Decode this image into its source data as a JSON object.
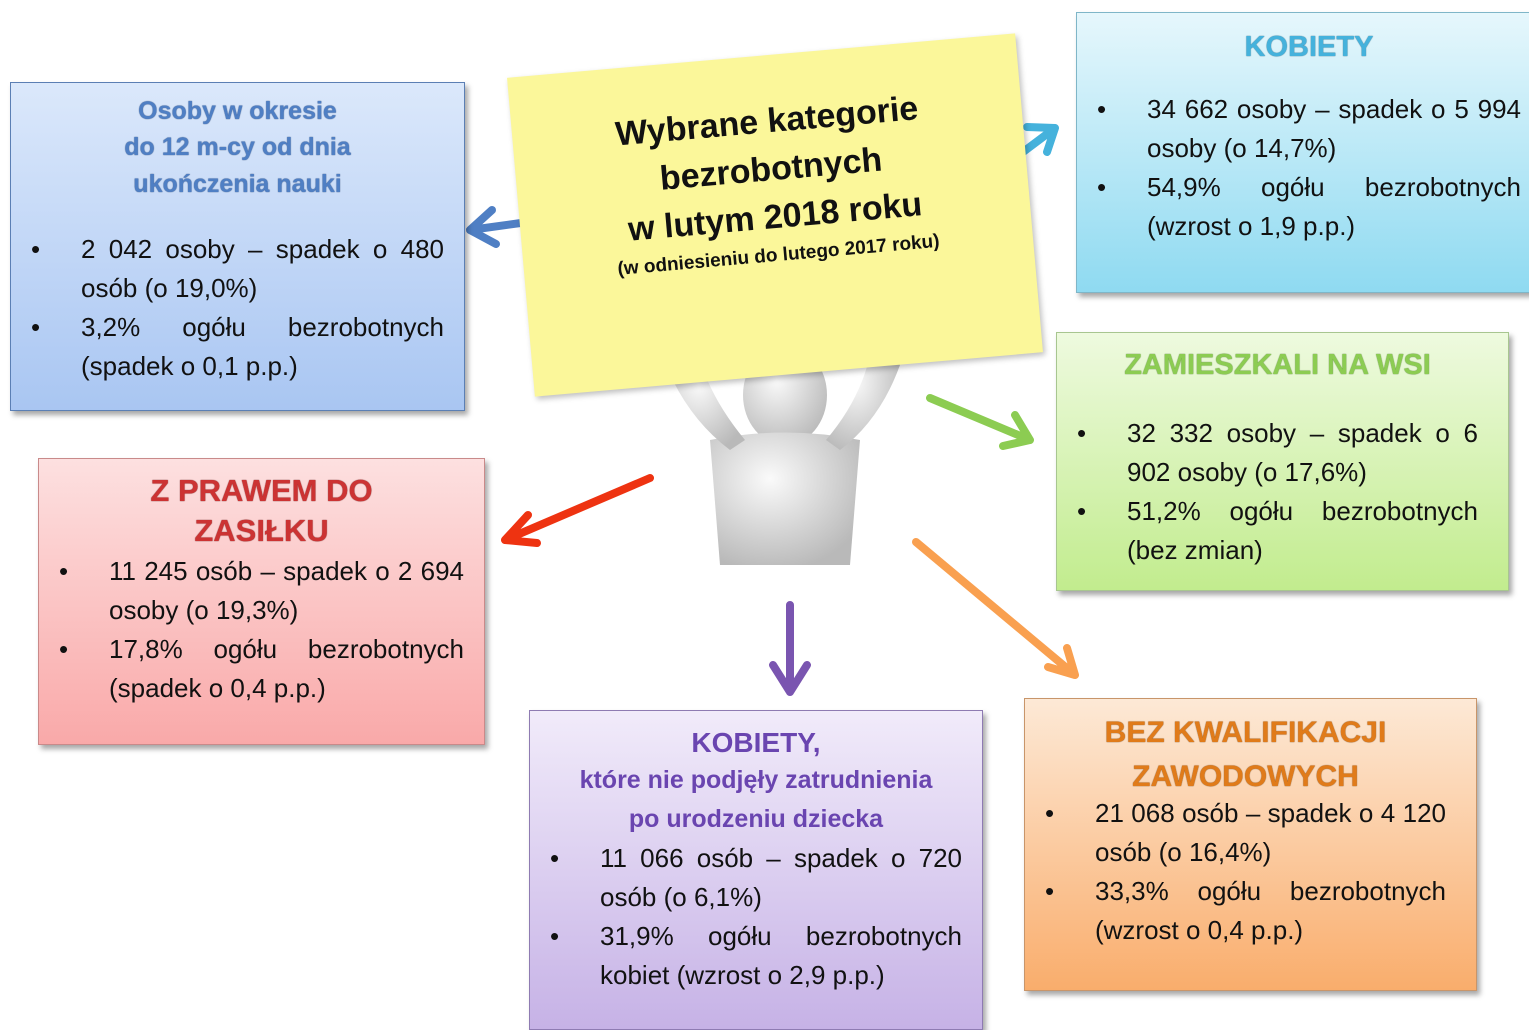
{
  "center": {
    "title_lines": [
      "Wybrane kategorie",
      "bezrobotnych",
      "w lutym 2018 roku"
    ],
    "subtitle": "(w odniesieniu do lutego 2017 roku)"
  },
  "boxes": [
    {
      "title_lines": [
        "Osoby w okresie",
        "do 12 m-cy od dnia",
        "ukończenia nauki"
      ],
      "items": [
        "2 042 osoby – spadek o 480 osób (o 19,0%)",
        "3,2% ogółu bezrobotnych (spadek o 0,1 p.p.)"
      ]
    },
    {
      "title_lines": [
        "KOBIETY"
      ],
      "items": [
        "34 662 osoby – spadek o 5 994 osoby (o 14,7%)",
        "54,9% ogółu bezrobotnych (wzrost o 1,9 p.p.)"
      ]
    },
    {
      "title_lines": [
        "ZAMIESZKALI NA WSI"
      ],
      "items": [
        "32 332 osoby – spadek o 6 902 osoby (o 17,6%)",
        "51,2% ogółu bezrobotnych (bez zmian)"
      ]
    },
    {
      "title_lines": [
        "Z PRAWEM DO",
        "ZASIŁKU"
      ],
      "items": [
        "11 245 osób – spadek o 2 694 osoby (o 19,3%)",
        "17,8% ogółu bezrobotnych (spadek o 0,4 p.p.)"
      ]
    },
    {
      "title_lines": [
        "KOBIETY,"
      ],
      "subtitle_lines": [
        "które nie podjęły zatrudnienia",
        "po urodzeniu dziecka"
      ],
      "items": [
        "11 066 osób – spadek o 720 osób (o 6,1%)",
        "31,9% ogółu bezrobotnych kobiet (wzrost o 2,9 p.p.)"
      ]
    },
    {
      "title_lines": [
        "BEZ KWALIFIKACJI",
        "ZAWODOWYCH"
      ],
      "items": [
        "21 068 osób – spadek o 4 120 osób (o 16,4%)",
        "33,3% ogółu bezrobotnych (wzrost o 0,4 p.p.)"
      ]
    }
  ]
}
